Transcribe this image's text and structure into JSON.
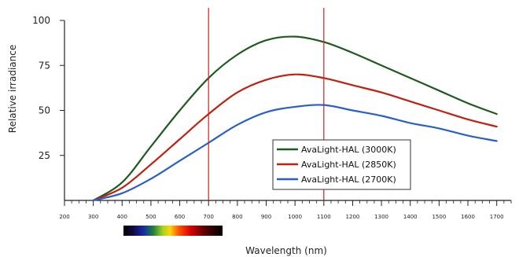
{
  "chart_data": {
    "type": "line",
    "title": "",
    "xlabel": "Wavelength (nm)",
    "ylabel": "Relative irradiance",
    "xlim": [
      200,
      1750
    ],
    "ylim": [
      0,
      100
    ],
    "x_ticks": [
      200,
      300,
      400,
      500,
      600,
      700,
      800,
      900,
      1000,
      1100,
      1200,
      1300,
      1400,
      1500,
      1600,
      1700
    ],
    "y_ticks": [
      25,
      50,
      75,
      100
    ],
    "vertical_markers": [
      700,
      1100
    ],
    "legend_position": "lower-right",
    "colors": {
      "marker": "#cc2222",
      "axis": "#222222"
    },
    "spectrum_band": "visible spectrum color bar",
    "series": [
      {
        "name": "AvaLight-HAL (3000K)",
        "color": "#1f5a1f",
        "x": [
          300,
          400,
          500,
          600,
          700,
          800,
          900,
          1000,
          1100,
          1200,
          1300,
          1400,
          1500,
          1600,
          1700
        ],
        "y": [
          0,
          10,
          30,
          50,
          68,
          81,
          89,
          91,
          88,
          82,
          75,
          68,
          61,
          54,
          48
        ]
      },
      {
        "name": "AvaLight-HAL (2850K)",
        "color": "#c02010",
        "x": [
          300,
          400,
          500,
          600,
          700,
          800,
          900,
          1000,
          1100,
          1200,
          1300,
          1400,
          1500,
          1600,
          1700
        ],
        "y": [
          0,
          7,
          20,
          34,
          48,
          60,
          67,
          70,
          68,
          64,
          60,
          55,
          50,
          45,
          41
        ]
      },
      {
        "name": "AvaLight-HAL (2700K)",
        "color": "#2a5fc8",
        "x": [
          300,
          400,
          500,
          600,
          700,
          800,
          900,
          1000,
          1100,
          1200,
          1300,
          1400,
          1500,
          1600,
          1700
        ],
        "y": [
          0,
          4,
          12,
          22,
          32,
          42,
          49,
          52,
          53,
          50,
          47,
          43,
          40,
          36,
          33
        ]
      }
    ]
  }
}
